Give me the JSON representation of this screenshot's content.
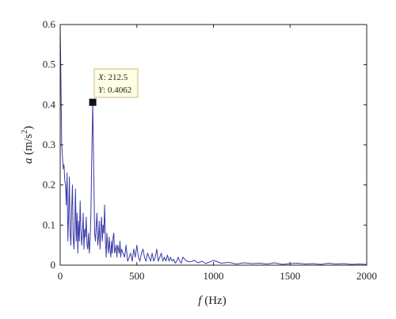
{
  "chart_data": {
    "type": "line",
    "title": "",
    "xlabel_var": "f",
    "xlabel_unit": " (Hz)",
    "ylabel_var": "a",
    "ylabel_unit": " (m/s",
    "ylabel_unit_sup": "2",
    "ylabel_unit_end": ")",
    "xlim": [
      0,
      2000
    ],
    "ylim": [
      0,
      0.6
    ],
    "xticks": [
      0,
      500,
      1000,
      1500,
      2000
    ],
    "yticks": [
      0,
      0.1,
      0.2,
      0.3,
      0.4,
      0.5,
      0.6
    ],
    "xtick_labels": [
      "0",
      "500",
      "1000",
      "1500",
      "2000"
    ],
    "ytick_labels": [
      "0",
      "0.1",
      "0.2",
      "0.3",
      "0.4",
      "0.5",
      "0.6"
    ],
    "grid": false,
    "line_color": "#3a3aa8",
    "series": [
      {
        "x": [
          0,
          5,
          10,
          20,
          25,
          30,
          35,
          40,
          45,
          50,
          55,
          60,
          65,
          70,
          75,
          80,
          85,
          90,
          95,
          100,
          105,
          110,
          115,
          120,
          125,
          130,
          135,
          140,
          145,
          150,
          155,
          160,
          165,
          170,
          175,
          180,
          185,
          190,
          195,
          200,
          205,
          212.5,
          220,
          225,
          230,
          235,
          240,
          245,
          250,
          255,
          260,
          265,
          270,
          275,
          280,
          285,
          290,
          295,
          300,
          305,
          310,
          315,
          320,
          325,
          330,
          335,
          340,
          345,
          350,
          355,
          360,
          365,
          370,
          375,
          380,
          385,
          390,
          395,
          400,
          410,
          420,
          430,
          440,
          450,
          460,
          470,
          480,
          490,
          500,
          510,
          520,
          530,
          540,
          550,
          560,
          570,
          580,
          590,
          600,
          610,
          620,
          630,
          640,
          650,
          660,
          670,
          680,
          690,
          700,
          710,
          720,
          730,
          740,
          750,
          760,
          770,
          780,
          790,
          800,
          825,
          850,
          875,
          900,
          925,
          950,
          975,
          1000,
          1050,
          1100,
          1150,
          1200,
          1250,
          1300,
          1350,
          1400,
          1450,
          1500,
          1550,
          1600,
          1650,
          1700,
          1750,
          1800,
          1850,
          1900,
          1950,
          2000
        ],
        "y": [
          0.6,
          0.45,
          0.3,
          0.24,
          0.25,
          0.21,
          0.2,
          0.15,
          0.23,
          0.06,
          0.12,
          0.22,
          0.08,
          0.05,
          0.14,
          0.2,
          0.07,
          0.04,
          0.1,
          0.19,
          0.06,
          0.13,
          0.03,
          0.11,
          0.06,
          0.16,
          0.09,
          0.05,
          0.08,
          0.13,
          0.04,
          0.09,
          0.07,
          0.12,
          0.05,
          0.04,
          0.08,
          0.03,
          0.06,
          0.12,
          0.25,
          0.4062,
          0.2,
          0.08,
          0.06,
          0.1,
          0.13,
          0.05,
          0.07,
          0.11,
          0.04,
          0.09,
          0.12,
          0.06,
          0.1,
          0.08,
          0.15,
          0.06,
          0.02,
          0.08,
          0.05,
          0.03,
          0.07,
          0.04,
          0.02,
          0.06,
          0.03,
          0.07,
          0.08,
          0.03,
          0.04,
          0.05,
          0.02,
          0.05,
          0.04,
          0.03,
          0.06,
          0.02,
          0.04,
          0.03,
          0.02,
          0.05,
          0.01,
          0.02,
          0.03,
          0.01,
          0.04,
          0.02,
          0.05,
          0.02,
          0.01,
          0.03,
          0.04,
          0.02,
          0.01,
          0.03,
          0.02,
          0.01,
          0.03,
          0.01,
          0.02,
          0.04,
          0.01,
          0.02,
          0.03,
          0.01,
          0.02,
          0.01,
          0.025,
          0.01,
          0.02,
          0.01,
          0.015,
          0.005,
          0.01,
          0.02,
          0.01,
          0.005,
          0.02,
          0.01,
          0.008,
          0.012,
          0.006,
          0.01,
          0.004,
          0.008,
          0.012,
          0.005,
          0.007,
          0.003,
          0.006,
          0.004,
          0.005,
          0.003,
          0.006,
          0.002,
          0.004,
          0.005,
          0.003,
          0.004,
          0.002,
          0.005,
          0.003,
          0.004,
          0.002,
          0.003,
          0.002
        ]
      }
    ],
    "datatip": {
      "x_label": "X",
      "x_value": "212.5",
      "y_label": "Y",
      "y_value": "0.4062",
      "x": 212.5,
      "y": 0.4062
    }
  }
}
